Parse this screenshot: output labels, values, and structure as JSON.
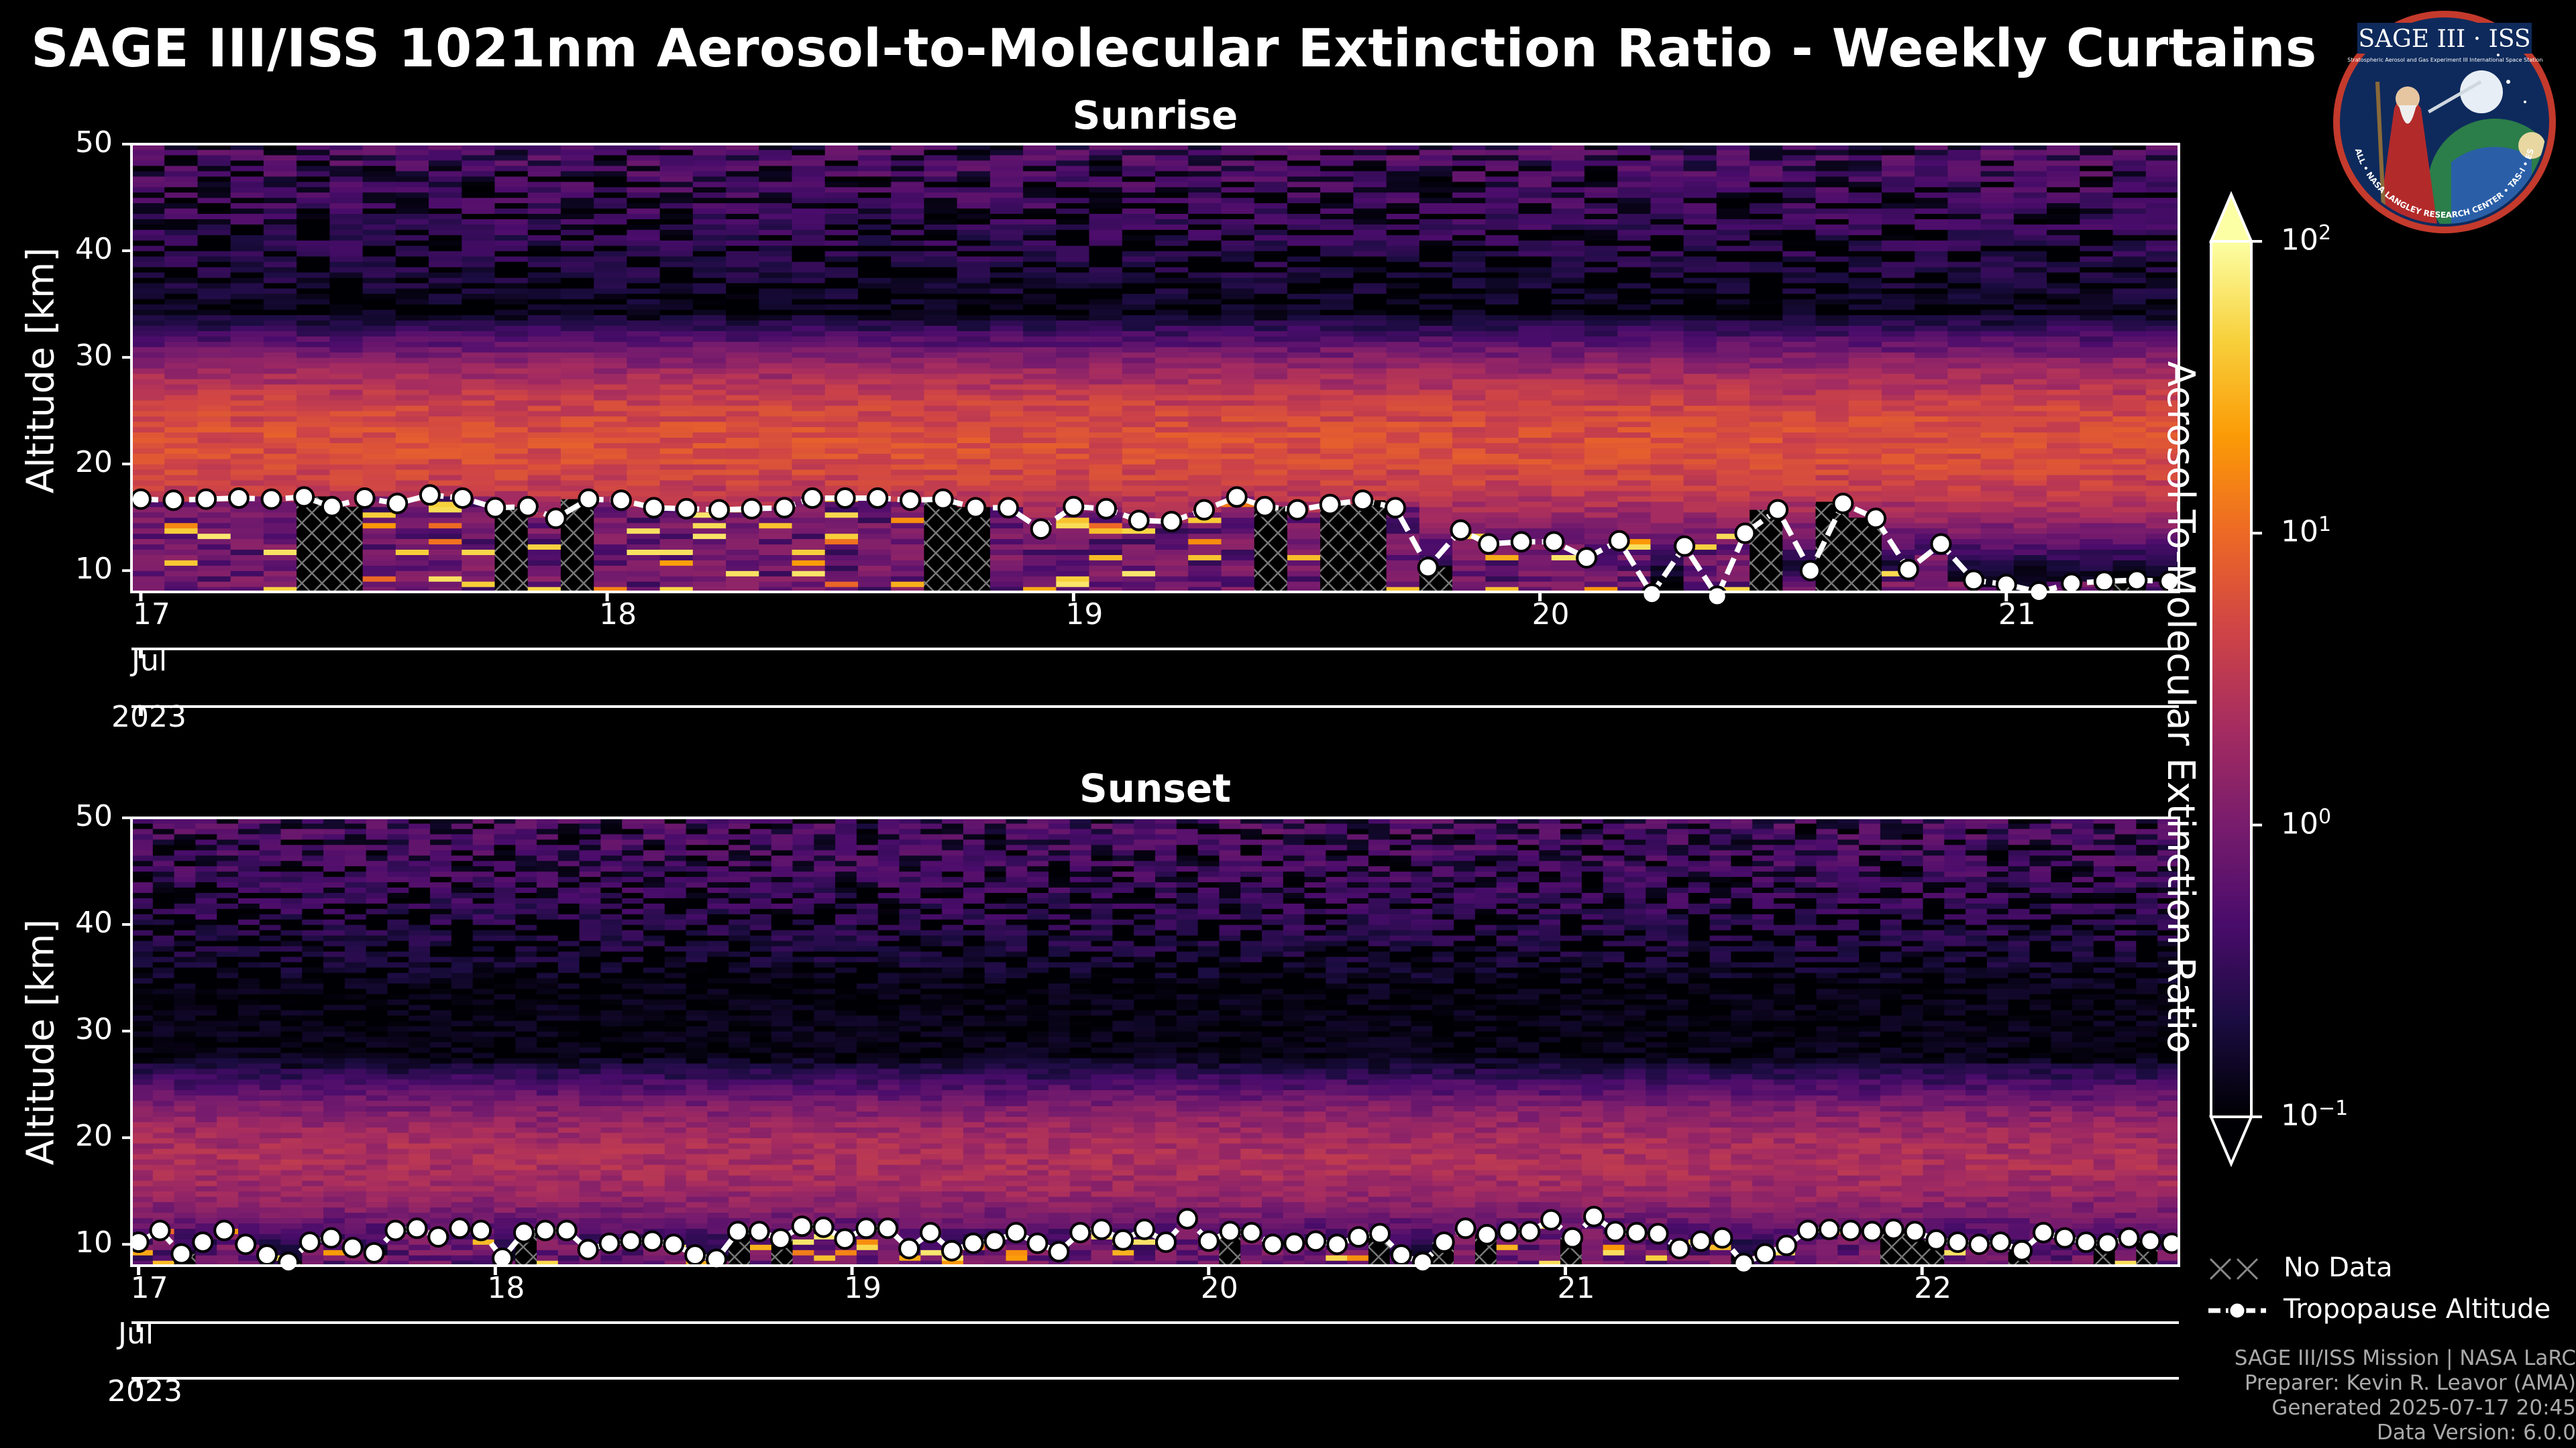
{
  "title": "SAGE III/ISS 1021nm Aerosol-to-Molecular Extinction Ratio - Weekly Curtains",
  "chart_data": [
    {
      "type": "heatmap",
      "title": "Sunrise",
      "ylabel": "Altitude [km]",
      "ylim": [
        8,
        50
      ],
      "yticks": [
        10,
        20,
        30,
        40,
        50
      ],
      "xlim_days": [
        16.98,
        21.37
      ],
      "xticks": [
        {
          "day": 17,
          "label": "17"
        },
        {
          "day": 18,
          "label": "18"
        },
        {
          "day": 19,
          "label": "19"
        },
        {
          "day": 20,
          "label": "20"
        },
        {
          "day": 21,
          "label": "21"
        }
      ],
      "month_label": "Jul",
      "year_label": "2023",
      "aerosol_layer": {
        "center_km": 22,
        "peak_ratio": 6,
        "upper_km": 30
      },
      "no_data_days": [
        17.4,
        17.45,
        17.8,
        17.95,
        18.75,
        19.45,
        19.6,
        19.75,
        20.5,
        20.6,
        20.7,
        21.25
      ],
      "tropopause": {
        "days": [
          17.0,
          17.07,
          17.14,
          17.21,
          17.28,
          17.35,
          17.41,
          17.48,
          17.55,
          17.62,
          17.69,
          17.76,
          17.83,
          17.89,
          17.96,
          18.03,
          18.1,
          18.17,
          18.24,
          18.31,
          18.38,
          18.44,
          18.51,
          18.58,
          18.65,
          18.72,
          18.79,
          18.86,
          18.93,
          19.0,
          19.07,
          19.14,
          19.21,
          19.28,
          19.35,
          19.41,
          19.48,
          19.55,
          19.62,
          19.69,
          19.76,
          19.83,
          19.89,
          19.96,
          20.03,
          20.1,
          20.17,
          20.24,
          20.31,
          20.38,
          20.44,
          20.51,
          20.58,
          20.65,
          20.72,
          20.79,
          20.86,
          20.93,
          21.0,
          21.07,
          21.14,
          21.21,
          21.28,
          21.35
        ],
        "altitudes_km": [
          16.7,
          16.6,
          16.7,
          16.8,
          16.7,
          16.9,
          16.0,
          16.8,
          16.3,
          17.1,
          16.8,
          15.9,
          16.0,
          14.9,
          16.7,
          16.6,
          15.9,
          15.8,
          15.7,
          15.8,
          15.9,
          16.8,
          16.8,
          16.8,
          16.6,
          16.7,
          15.9,
          15.9,
          13.9,
          16.0,
          15.8,
          14.7,
          14.6,
          15.7,
          16.9,
          16.0,
          15.7,
          16.2,
          16.6,
          15.9,
          10.3,
          13.8,
          12.5,
          12.7,
          12.7,
          11.2,
          12.8,
          7.8,
          12.3,
          7.6,
          13.5,
          15.7,
          10.0,
          16.3,
          14.9,
          10.1,
          12.5,
          9.1,
          8.7,
          8.0,
          8.8,
          9.0,
          9.1,
          9.0
        ]
      }
    },
    {
      "type": "heatmap",
      "title": "Sunset",
      "ylabel": "Altitude [km]",
      "ylim": [
        8,
        50
      ],
      "yticks": [
        10,
        20,
        30,
        40,
        50
      ],
      "xlim_days": [
        16.98,
        22.72
      ],
      "xticks": [
        {
          "day": 17,
          "label": "17"
        },
        {
          "day": 18,
          "label": "18"
        },
        {
          "day": 19,
          "label": "19"
        },
        {
          "day": 20,
          "label": "20"
        },
        {
          "day": 21,
          "label": "21"
        },
        {
          "day": 22,
          "label": "22"
        }
      ],
      "month_label": "Jul",
      "year_label": "2023",
      "aerosol_layer": {
        "center_km": 18,
        "peak_ratio": 2.5,
        "upper_km": 25
      },
      "no_data_days": [
        17.15,
        17.45,
        18.1,
        18.7,
        18.8,
        20.05,
        20.5,
        20.65,
        20.8,
        21.0,
        21.9,
        22.0,
        22.25,
        22.5,
        22.65
      ],
      "tropopause": {
        "days": [
          17.0,
          17.06,
          17.12,
          17.18,
          17.24,
          17.3,
          17.36,
          17.42,
          17.48,
          17.54,
          17.6,
          17.66,
          17.72,
          17.78,
          17.84,
          17.9,
          17.96,
          18.02,
          18.08,
          18.14,
          18.2,
          18.26,
          18.32,
          18.38,
          18.44,
          18.5,
          18.56,
          18.62,
          18.68,
          18.74,
          18.8,
          18.86,
          18.92,
          18.98,
          19.04,
          19.1,
          19.16,
          19.22,
          19.28,
          19.34,
          19.4,
          19.46,
          19.52,
          19.58,
          19.64,
          19.7,
          19.76,
          19.82,
          19.88,
          19.94,
          20.0,
          20.06,
          20.12,
          20.18,
          20.24,
          20.3,
          20.36,
          20.42,
          20.48,
          20.54,
          20.6,
          20.66,
          20.72,
          20.78,
          20.84,
          20.9,
          20.96,
          21.02,
          21.08,
          21.14,
          21.2,
          21.26,
          21.32,
          21.38,
          21.44,
          21.5,
          21.56,
          21.62,
          21.68,
          21.74,
          21.8,
          21.86,
          21.92,
          21.98,
          22.04,
          22.1,
          22.16,
          22.22,
          22.28,
          22.34,
          22.4,
          22.46,
          22.52,
          22.58,
          22.64,
          22.7
        ],
        "altitudes_km": [
          10.2,
          11.3,
          9.1,
          10.2,
          11.3,
          10.0,
          9.0,
          8.3,
          10.2,
          10.6,
          9.7,
          9.2,
          11.3,
          11.5,
          10.7,
          11.5,
          11.3,
          8.7,
          11.1,
          11.3,
          11.3,
          9.5,
          10.1,
          10.3,
          10.3,
          10.0,
          9.0,
          8.6,
          11.2,
          11.2,
          10.5,
          11.7,
          11.6,
          10.5,
          11.5,
          11.5,
          9.6,
          11.1,
          9.4,
          10.1,
          10.3,
          11.1,
          10.1,
          9.3,
          11.1,
          11.4,
          10.4,
          11.4,
          10.2,
          12.4,
          10.3,
          11.2,
          11.1,
          10.0,
          10.1,
          10.3,
          10.0,
          10.7,
          11.0,
          9.0,
          8.3,
          10.2,
          11.5,
          10.9,
          11.2,
          11.2,
          12.3,
          10.6,
          12.6,
          11.2,
          11.1,
          11.0,
          9.6,
          10.3,
          10.6,
          8.2,
          9.1,
          9.9,
          11.3,
          11.4,
          11.3,
          11.2,
          11.4,
          11.2,
          10.4,
          10.2,
          10.0,
          10.2,
          9.4,
          11.1,
          10.6,
          10.2,
          10.1,
          10.6,
          10.3,
          10.1
        ]
      }
    }
  ],
  "colorbar": {
    "label": "Aerosol-To-Molecular Extinction Ratio",
    "scale": "log",
    "range": [
      0.1,
      100
    ],
    "ticks": [
      {
        "value": 0.1,
        "base": "10",
        "exp": "−1"
      },
      {
        "value": 1,
        "base": "10",
        "exp": "0"
      },
      {
        "value": 10,
        "base": "10",
        "exp": "1"
      },
      {
        "value": 100,
        "base": "10",
        "exp": "2"
      }
    ],
    "colors": [
      "#000004",
      "#1b0c41",
      "#4a0c6b",
      "#781c6d",
      "#a52c60",
      "#cf4446",
      "#ed6925",
      "#fb9b06",
      "#f7d13d",
      "#fcffa4"
    ]
  },
  "legend": {
    "no_data": "No Data",
    "tropopause": "Tropopause Altitude"
  },
  "footer": {
    "line1": "SAGE III/ISS Mission | NASA LaRC",
    "line2": "Preparer: Kevin R. Leavor (AMA)",
    "line3": "Generated 2025-07-17 20:45",
    "line4": "Data Version: 6.0.0"
  },
  "logo": {
    "title": "SAGE III · ISS",
    "subtitle_left": "Stratospheric Aerosol and Gas Experiment III",
    "subtitle_right": "International Space Station",
    "ring_text": "BALL • NASA LANGLEY RESEARCH CENTER • TAS-I • ESA"
  }
}
